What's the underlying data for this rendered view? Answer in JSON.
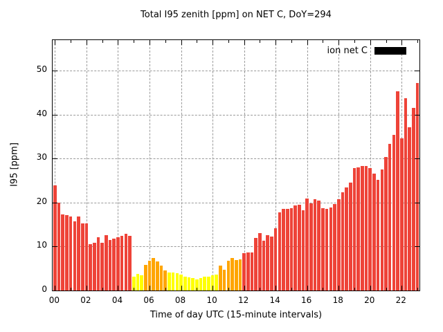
{
  "title": "Total I95 zenith [ppm] on NET C, DoY=294",
  "x_axis": {
    "label": "Time of day UTC (15-minute intervals)",
    "tick_labels": [
      "00",
      "02",
      "04",
      "06",
      "08",
      "10",
      "12",
      "14",
      "16",
      "18",
      "20",
      "22"
    ],
    "tick_hours": [
      0,
      2,
      4,
      6,
      8,
      10,
      12,
      14,
      16,
      18,
      20,
      22
    ]
  },
  "y_axis": {
    "label": "I95 [ppm]",
    "tick_labels": [
      "0",
      "10",
      "20",
      "30",
      "40",
      "50"
    ],
    "tick_values": [
      0,
      10,
      20,
      30,
      40,
      50
    ]
  },
  "legend": {
    "label": "ion net C",
    "swatch_color": "#000000"
  },
  "colors": {
    "red": "#ee4338",
    "orange": "#ffa500",
    "yellow": "#ffff00",
    "grid": "#999999",
    "axis": "#000000",
    "background": "#ffffff"
  },
  "chart_data": {
    "type": "bar",
    "title": "Total I95 zenith [ppm] on NET C, DoY=294",
    "xlabel": "Time of day UTC (15-minute intervals)",
    "ylabel": "I95 [ppm]",
    "legend_entries": [
      {
        "label": "ion net C",
        "color": "#000000"
      }
    ],
    "grid": "dashed, at y multiples of 10 and x every 2 hours",
    "legend_position": "top-right inside plot",
    "ylim": [
      0,
      57
    ],
    "xlim_hours": [
      -0.15,
      23.13
    ],
    "bar_interval_minutes": 15,
    "x": [
      "00:00",
      "00:15",
      "00:30",
      "00:45",
      "01:00",
      "01:15",
      "01:30",
      "01:45",
      "02:00",
      "02:15",
      "02:30",
      "02:45",
      "03:00",
      "03:15",
      "03:30",
      "03:45",
      "04:00",
      "04:15",
      "04:30",
      "04:45",
      "05:00",
      "05:15",
      "05:30",
      "05:45",
      "06:00",
      "06:15",
      "06:30",
      "06:45",
      "07:00",
      "07:15",
      "07:30",
      "07:45",
      "08:00",
      "08:15",
      "08:30",
      "08:45",
      "09:00",
      "09:15",
      "09:30",
      "09:45",
      "10:00",
      "10:15",
      "10:30",
      "10:45",
      "11:00",
      "11:15",
      "11:30",
      "11:45",
      "12:00",
      "12:15",
      "12:30",
      "12:45",
      "13:00",
      "13:15",
      "13:30",
      "13:45",
      "14:00",
      "14:15",
      "14:30",
      "14:45",
      "15:00",
      "15:15",
      "15:30",
      "15:45",
      "16:00",
      "16:15",
      "16:30",
      "16:45",
      "17:00",
      "17:15",
      "17:30",
      "17:45",
      "18:00",
      "18:15",
      "18:30",
      "18:45",
      "19:00",
      "19:15",
      "19:30",
      "19:45",
      "20:00",
      "20:15",
      "20:30",
      "20:45",
      "21:00",
      "21:15",
      "21:30",
      "21:45",
      "22:00",
      "22:15",
      "22:30",
      "22:45",
      "23:00"
    ],
    "values": [
      23.9,
      20.0,
      17.4,
      17.2,
      16.8,
      15.8,
      16.9,
      15.3,
      15.3,
      10.5,
      10.8,
      12.1,
      10.8,
      12.6,
      11.5,
      11.8,
      12.2,
      12.5,
      12.9,
      12.5,
      3.2,
      3.8,
      3.5,
      5.8,
      6.7,
      7.4,
      6.6,
      5.6,
      4.6,
      4.1,
      4.1,
      4.0,
      3.7,
      3.1,
      3.0,
      2.8,
      2.6,
      2.8,
      3.1,
      3.1,
      3.4,
      3.6,
      5.6,
      4.8,
      6.8,
      7.4,
      7.0,
      7.1,
      8.5,
      8.7,
      8.7,
      11.9,
      13.0,
      11.3,
      12.6,
      12.3,
      14.2,
      17.8,
      18.6,
      18.6,
      18.7,
      19.4,
      19.6,
      18.3,
      21.0,
      19.9,
      20.8,
      20.4,
      18.8,
      18.6,
      18.9,
      19.7,
      20.8,
      22.3,
      23.4,
      24.6,
      27.8,
      28.1,
      28.4,
      28.4,
      27.8,
      26.6,
      25.2,
      27.5,
      30.4,
      33.4,
      35.4,
      45.3,
      34.6,
      43.7,
      37.1,
      41.6,
      47.3
    ],
    "bar_color_keys": [
      "r",
      "r",
      "r",
      "r",
      "r",
      "r",
      "r",
      "r",
      "r",
      "r",
      "r",
      "r",
      "r",
      "r",
      "r",
      "r",
      "r",
      "r",
      "r",
      "r",
      "y",
      "y",
      "y",
      "o",
      "o",
      "o",
      "o",
      "o",
      "o",
      "y",
      "y",
      "y",
      "y",
      "y",
      "y",
      "y",
      "y",
      "y",
      "y",
      "y",
      "y",
      "y",
      "o",
      "o",
      "o",
      "o",
      "o",
      "o",
      "r",
      "r",
      "r",
      "r",
      "r",
      "r",
      "r",
      "r",
      "r",
      "r",
      "r",
      "r",
      "r",
      "r",
      "r",
      "r",
      "r",
      "r",
      "r",
      "r",
      "r",
      "r",
      "r",
      "r",
      "r",
      "r",
      "r",
      "r",
      "r",
      "r",
      "r",
      "r",
      "r",
      "r",
      "r",
      "r",
      "r",
      "r",
      "r",
      "r",
      "r",
      "r",
      "r",
      "r",
      "r"
    ],
    "color_key_map": {
      "r": "#ee4338",
      "o": "#ffa500",
      "y": "#ffff00"
    }
  }
}
